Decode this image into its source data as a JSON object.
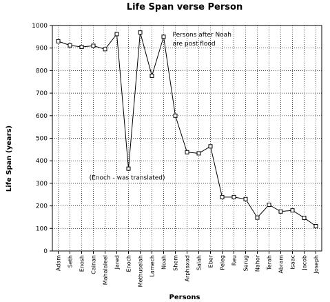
{
  "chart_data": {
    "type": "line",
    "title": "Life Span verse Person",
    "xlabel": "Persons",
    "ylabel": "Life Span (years)",
    "ylim": [
      0,
      1000
    ],
    "yticks": [
      0,
      100,
      200,
      300,
      400,
      500,
      600,
      700,
      800,
      900,
      1000
    ],
    "grid": true,
    "categories": [
      "Adam",
      "Seth",
      "Enosh",
      "Cainan",
      "Mahalaleel",
      "Jared",
      "Enoch",
      "Methuselah",
      "Lamech",
      "Noah",
      "Shem",
      "Arphaxad",
      "Salah",
      "Eber",
      "Peleg",
      "Reu",
      "Serug",
      "Nahor",
      "Terah",
      "Abram",
      "Isaac",
      "Jacob",
      "Joseph"
    ],
    "values": [
      930,
      912,
      905,
      910,
      895,
      962,
      365,
      969,
      777,
      950,
      600,
      438,
      433,
      464,
      239,
      239,
      230,
      148,
      205,
      175,
      180,
      147,
      110
    ],
    "annotations": [
      {
        "text": "(Enoch - was translated)",
        "category": "Enoch",
        "value": 325,
        "anchor": "end"
      },
      {
        "text": "Persons after Noah",
        "category": "Noah",
        "value": 960,
        "anchor": "start"
      },
      {
        "text": "are post flood",
        "category": "Noah",
        "value": 920,
        "anchor": "start"
      }
    ]
  }
}
